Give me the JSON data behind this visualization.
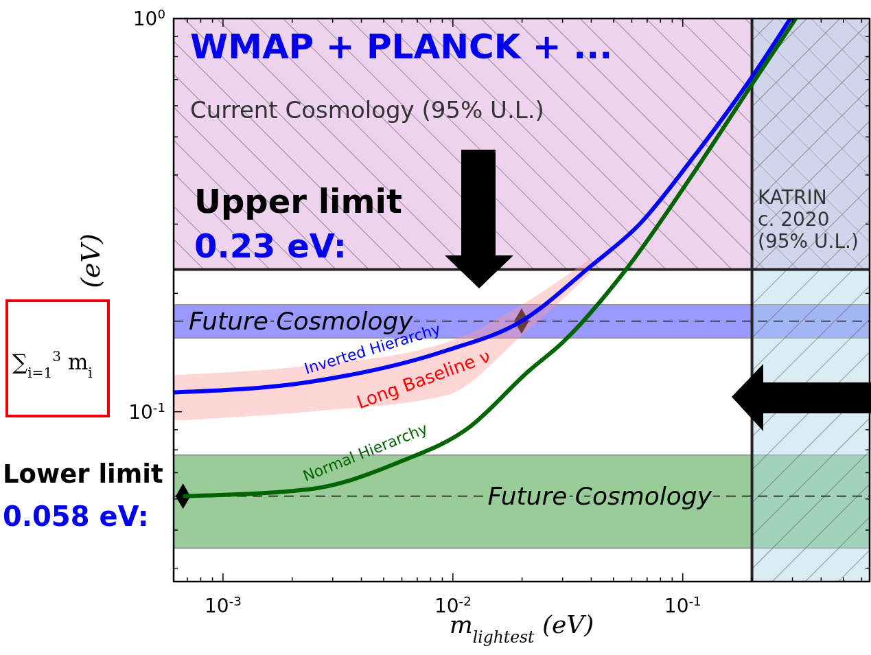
{
  "chart_data": {
    "type": "line",
    "xlabel": "m$_{lightest}$ (eV)",
    "ylabel": "(eV)",
    "log": "xy",
    "xlim": [
      0.00061,
      0.65
    ],
    "ylim": [
      0.037,
      1.0
    ],
    "xticks": [
      {
        "value": 0.0007,
        "label": null
      },
      {
        "value": 0.0008,
        "label": null
      },
      {
        "value": 0.0009,
        "label": null
      },
      {
        "value": 0.001,
        "label": "10$^{-3}$"
      },
      {
        "value": 0.002,
        "label": null
      },
      {
        "value": 0.003,
        "label": null
      },
      {
        "value": 0.004,
        "label": null
      },
      {
        "value": 0.005,
        "label": null
      },
      {
        "value": 0.006,
        "label": null
      },
      {
        "value": 0.007,
        "label": null
      },
      {
        "value": 0.008,
        "label": null
      },
      {
        "value": 0.009,
        "label": null
      },
      {
        "value": 0.01,
        "label": "10$^{-2}$"
      },
      {
        "value": 0.02,
        "label": null
      },
      {
        "value": 0.03,
        "label": null
      },
      {
        "value": 0.04,
        "label": null
      },
      {
        "value": 0.05,
        "label": null
      },
      {
        "value": 0.06,
        "label": null
      },
      {
        "value": 0.07,
        "label": null
      },
      {
        "value": 0.08,
        "label": null
      },
      {
        "value": 0.09,
        "label": null
      },
      {
        "value": 0.1,
        "label": "10$^{-1}$"
      },
      {
        "value": 0.2,
        "label": null
      },
      {
        "value": 0.3,
        "label": null
      },
      {
        "value": 0.4,
        "label": null
      },
      {
        "value": 0.5,
        "label": null
      },
      {
        "value": 0.6,
        "label": null
      }
    ],
    "yticks": [
      {
        "value": 0.04,
        "label": null
      },
      {
        "value": 0.05,
        "label": null
      },
      {
        "value": 0.06,
        "label": null
      },
      {
        "value": 0.07,
        "label": null
      },
      {
        "value": 0.08,
        "label": null
      },
      {
        "value": 0.09,
        "label": null
      },
      {
        "value": 0.1,
        "label": "10$^{-1}$"
      },
      {
        "value": 0.2,
        "label": null
      },
      {
        "value": 0.3,
        "label": null
      },
      {
        "value": 0.4,
        "label": null
      },
      {
        "value": 0.5,
        "label": null
      },
      {
        "value": 0.6,
        "label": null
      },
      {
        "value": 0.7,
        "label": null
      },
      {
        "value": 0.8,
        "label": null
      },
      {
        "value": 0.9,
        "label": null
      },
      {
        "value": 1.0,
        "label": "10$^{0}$"
      }
    ],
    "series": [
      {
        "name": "Inverted Hierarchy",
        "color": "#0000ff",
        "x": [
          0.00061,
          0.00236,
          0.00933,
          0.0199,
          0.0396,
          0.0649,
          0.11,
          0.2,
          0.294
        ],
        "values": [
          0.112,
          0.119,
          0.143,
          0.17,
          0.234,
          0.3,
          0.44,
          0.71,
          1.0
        ],
        "lower": [
          0.095,
          0.1,
          0.11,
          0.156,
          0.225,
          null,
          null,
          null,
          null
        ],
        "upper": [
          0.124,
          0.131,
          0.15,
          0.187,
          0.245,
          null,
          null,
          null,
          null
        ]
      },
      {
        "name": "Normal Hierarchy",
        "color": "#006400",
        "x": [
          0.00067,
          0.00236,
          0.00589,
          0.0117,
          0.0214,
          0.03,
          0.0573,
          0.11,
          0.2,
          0.31
        ],
        "values": [
          0.061,
          0.0635,
          0.0746,
          0.091,
          0.127,
          0.15,
          0.232,
          0.4,
          0.68,
          1.0
        ]
      },
      {
        "type": "scatter",
        "marker": "diamond",
        "color": "#000000",
        "x": [
          0.0199,
          0.00067
        ],
        "values": [
          0.17,
          0.061
        ]
      }
    ],
    "bands": [
      {
        "axis": "y",
        "from": 0.23,
        "to": 1.0,
        "label": "Current Cosmology (95% U.L.)",
        "color": "#eed3ee"
      },
      {
        "axis": "y",
        "from": 0.154,
        "to": 0.187,
        "label": "Future Cosmology",
        "color": "#9999ff"
      },
      {
        "axis": "y",
        "from": 0.045,
        "to": 0.0776,
        "label": "Future Cosmology",
        "color": "#99cc99"
      },
      {
        "axis": "x",
        "from": 0.2,
        "to": 0.65,
        "label": "KATRIN\nc. 2020\n(95% U.L.)",
        "color": "#add8e6"
      }
    ],
    "ref_lines": [
      {
        "axis": "y",
        "value": 0.23,
        "color": "#222222",
        "line_style": "solid"
      },
      {
        "axis": "x",
        "value": 0.2,
        "color": "#222222",
        "line_style": "solid"
      },
      {
        "axis": "y",
        "value": 0.17,
        "color": "#222222",
        "line_style": "dashed"
      },
      {
        "axis": "y",
        "value": 0.061,
        "color": "#222222",
        "line_style": "dashed"
      }
    ],
    "annotations": [
      "WMAP + PLANCK + ...",
      "Upper limit",
      "0.23 eV:",
      "Lower limit",
      "0.058 eV:",
      "∑$_{i=1}$$^{3}$ m$_{i}$",
      "Long Baseline ν"
    ]
  }
}
